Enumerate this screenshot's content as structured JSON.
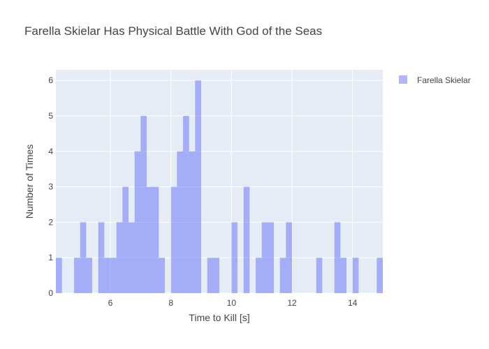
{
  "chart_data": {
    "type": "bar",
    "title": "Farella Skielar Has Physical Battle With God of the Seas",
    "xlabel": "Time to Kill [s]",
    "ylabel": "Number of Times",
    "xlim": [
      4.2,
      15.0
    ],
    "ylim": [
      0,
      6.3
    ],
    "bin_width": 0.2,
    "x_ticks": [
      6,
      8,
      10,
      12,
      14
    ],
    "y_ticks": [
      0,
      1,
      2,
      3,
      4,
      5,
      6
    ],
    "grid": true,
    "legend_position": "top-right",
    "series": [
      {
        "name": "Farella Skielar",
        "color": "#636efa",
        "opacity": 0.5,
        "bins": [
          {
            "x0": 4.2,
            "count": 1
          },
          {
            "x0": 4.8,
            "count": 1
          },
          {
            "x0": 5.0,
            "count": 2
          },
          {
            "x0": 5.2,
            "count": 1
          },
          {
            "x0": 5.6,
            "count": 2
          },
          {
            "x0": 5.8,
            "count": 1
          },
          {
            "x0": 6.0,
            "count": 1
          },
          {
            "x0": 6.2,
            "count": 2
          },
          {
            "x0": 6.4,
            "count": 3
          },
          {
            "x0": 6.6,
            "count": 2
          },
          {
            "x0": 6.8,
            "count": 4
          },
          {
            "x0": 7.0,
            "count": 5
          },
          {
            "x0": 7.2,
            "count": 3
          },
          {
            "x0": 7.4,
            "count": 3
          },
          {
            "x0": 7.6,
            "count": 1
          },
          {
            "x0": 8.0,
            "count": 3
          },
          {
            "x0": 8.2,
            "count": 4
          },
          {
            "x0": 8.4,
            "count": 5
          },
          {
            "x0": 8.6,
            "count": 4
          },
          {
            "x0": 8.8,
            "count": 6
          },
          {
            "x0": 9.2,
            "count": 1
          },
          {
            "x0": 9.4,
            "count": 1
          },
          {
            "x0": 10.0,
            "count": 2
          },
          {
            "x0": 10.4,
            "count": 3
          },
          {
            "x0": 10.8,
            "count": 1
          },
          {
            "x0": 11.0,
            "count": 2
          },
          {
            "x0": 11.2,
            "count": 2
          },
          {
            "x0": 11.6,
            "count": 1
          },
          {
            "x0": 11.8,
            "count": 2
          },
          {
            "x0": 12.8,
            "count": 1
          },
          {
            "x0": 13.4,
            "count": 2
          },
          {
            "x0": 13.6,
            "count": 1
          },
          {
            "x0": 14.0,
            "count": 1
          },
          {
            "x0": 14.8,
            "count": 1
          }
        ]
      }
    ]
  }
}
